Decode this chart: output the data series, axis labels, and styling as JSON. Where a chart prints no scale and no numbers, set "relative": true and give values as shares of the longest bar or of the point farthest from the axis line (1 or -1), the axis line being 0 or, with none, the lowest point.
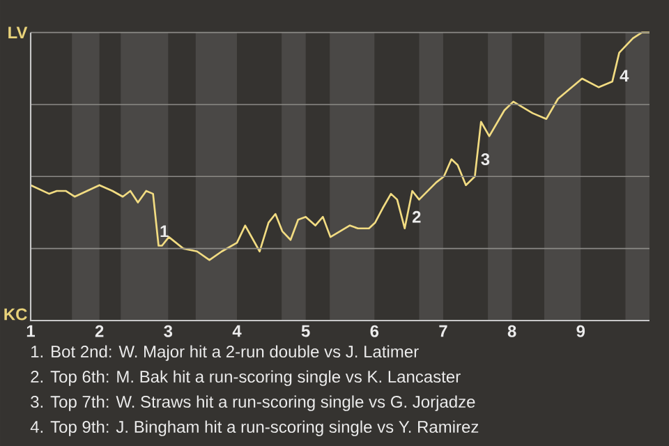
{
  "chart_data": {
    "type": "line",
    "x": [
      1.0,
      1.27,
      1.38,
      1.51,
      1.64,
      2.0,
      2.19,
      2.34,
      2.45,
      2.56,
      2.68,
      2.78,
      2.86,
      2.91,
      3.01,
      3.22,
      3.42,
      3.6,
      3.78,
      4.0,
      4.12,
      4.33,
      4.46,
      4.56,
      4.66,
      4.78,
      4.89,
      5.0,
      5.14,
      5.25,
      5.36,
      5.64,
      5.76,
      5.92,
      6.01,
      6.12,
      6.24,
      6.33,
      6.44,
      6.55,
      6.65,
      6.9,
      7.01,
      7.12,
      7.21,
      7.33,
      7.46,
      7.55,
      7.67,
      7.89,
      8.02,
      8.3,
      8.5,
      8.67,
      9.02,
      9.26,
      9.46,
      9.56,
      9.76,
      9.89,
      10.0
    ],
    "series": [
      {
        "color": "#f2dc82",
        "values": [
          0.47,
          0.44,
          0.45,
          0.45,
          0.43,
          0.47,
          0.45,
          0.43,
          0.45,
          0.41,
          0.45,
          0.44,
          0.26,
          0.26,
          0.29,
          0.25,
          0.24,
          0.21,
          0.24,
          0.27,
          0.33,
          0.24,
          0.34,
          0.37,
          0.31,
          0.28,
          0.35,
          0.36,
          0.33,
          0.36,
          0.29,
          0.33,
          0.32,
          0.32,
          0.34,
          0.39,
          0.44,
          0.42,
          0.32,
          0.45,
          0.42,
          0.48,
          0.5,
          0.56,
          0.54,
          0.47,
          0.5,
          0.69,
          0.64,
          0.73,
          0.76,
          0.72,
          0.7,
          0.77,
          0.84,
          0.81,
          0.83,
          0.93,
          0.98,
          1.0,
          1.0
        ]
      }
    ],
    "relative": true,
    "xlim": [
      1,
      10
    ],
    "xticks": [
      1,
      2,
      3,
      4,
      5,
      6,
      7,
      8,
      9
    ],
    "grid": "y",
    "marker": "none",
    "line_style": "solid",
    "bands": [
      {
        "axis": "x",
        "from": 1.6,
        "to": 2,
        "color": "#4a4846"
      },
      {
        "axis": "x",
        "from": 2.31,
        "to": 3,
        "color": "#4a4846"
      },
      {
        "axis": "x",
        "from": 3.4,
        "to": 4,
        "color": "#4a4846"
      },
      {
        "axis": "x",
        "from": 4.65,
        "to": 5,
        "color": "#4a4846"
      },
      {
        "axis": "x",
        "from": 5.35,
        "to": 6,
        "color": "#4a4846"
      },
      {
        "axis": "x",
        "from": 6.65,
        "to": 7,
        "color": "#4a4846"
      },
      {
        "axis": "x",
        "from": 7.65,
        "to": 8,
        "color": "#4a4846"
      },
      {
        "axis": "x",
        "from": 8.47,
        "to": 9,
        "color": "#4a4846"
      },
      {
        "axis": "x",
        "from": 9.65,
        "to": 10,
        "color": "#4a4846"
      }
    ],
    "annotations": [
      "LV",
      "KC",
      {
        "text": "1",
        "x": 2.87,
        "y": 0.31
      },
      {
        "text": "2",
        "x": 6.54,
        "y": 0.36
      },
      {
        "text": "3",
        "x": 7.54,
        "y": 0.56
      },
      {
        "text": "4",
        "x": 9.56,
        "y": 0.85
      },
      "1. Bot 2nd: W. Major hit a 2-run double vs J. Latimer",
      "2. Top 6th: M. Bak hit a run-scoring single vs K. Lancaster",
      "3. Top 7th: W. Straws hit a run-scoring single vs G. Jorjadze",
      "4. Top 9th: J. Bingham hit a run-scoring single vs Y. Ramirez"
    ]
  }
}
